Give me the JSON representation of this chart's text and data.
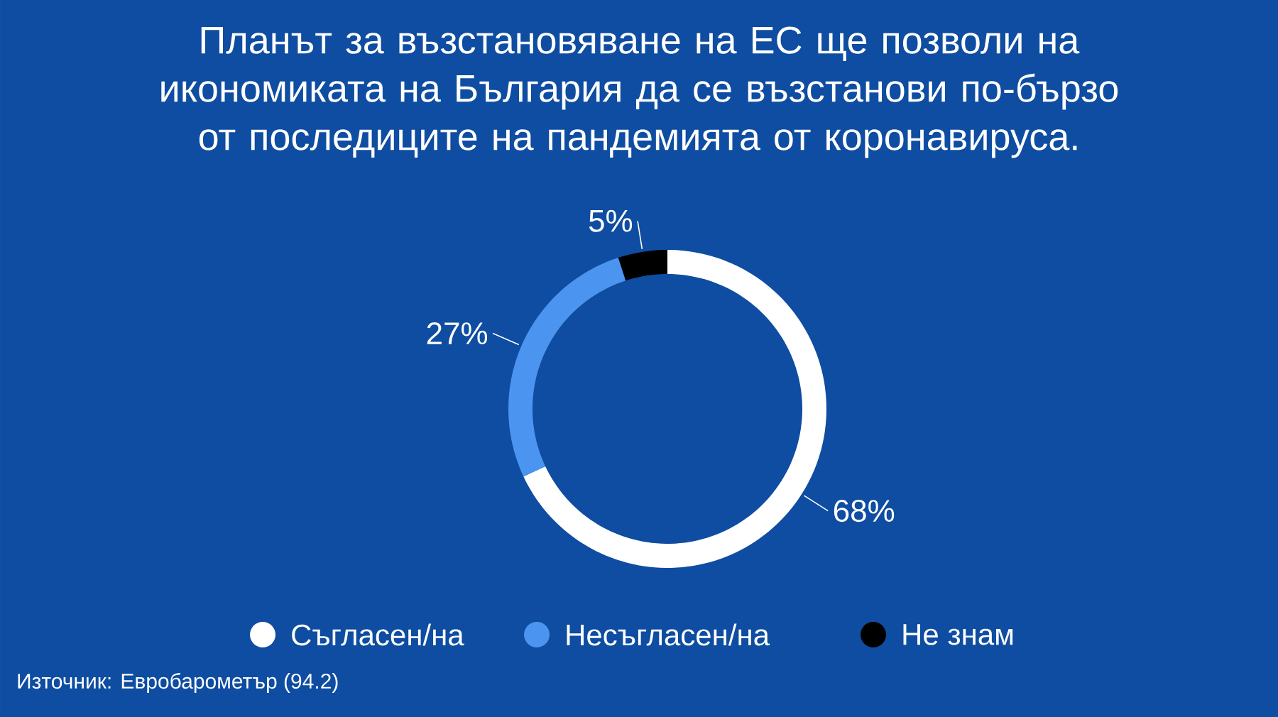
{
  "chart_data": {
    "type": "donut",
    "title": "Планът за възстановяване на ЕС ще позволи на икономиката на България да се възстанови по-бързо от последиците на пандемията от коронавируса.",
    "categories": [
      "Съгласен/на",
      "Несъгласен/на",
      "Не знам"
    ],
    "values": [
      68,
      27,
      5
    ],
    "colors": [
      "#ffffff",
      "#4b94ef",
      "#000000"
    ],
    "value_labels": [
      "68%",
      "27%",
      "5%"
    ],
    "legend": "bottom",
    "annotations": [
      "Източник: Евробарометър (94.2)"
    ]
  }
}
